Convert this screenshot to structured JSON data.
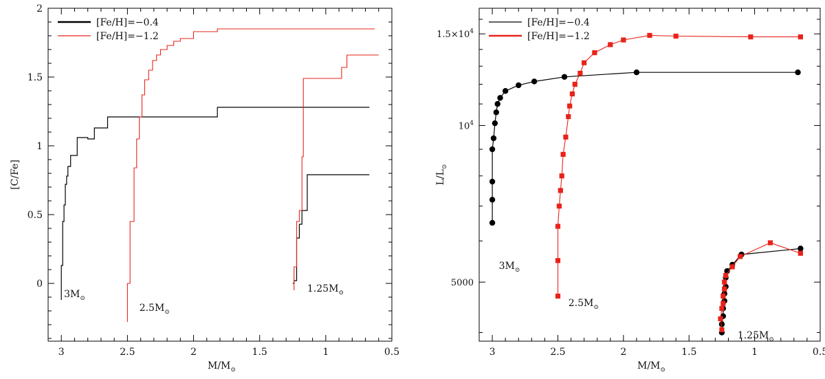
{
  "chart_data": [
    {
      "type": "line",
      "xlabel": "M/M",
      "xlabel_sub": "⊙",
      "ylabel": "[C/Fe]",
      "xlim": [
        3.1,
        0.5
      ],
      "ylim": [
        -0.42,
        2.0
      ],
      "x_ticks": [
        3,
        2.5,
        2,
        1.5,
        1,
        0.5
      ],
      "x_tick_labels": [
        "3",
        "2.5",
        "2",
        "1.5",
        "1",
        "0.5"
      ],
      "y_ticks": [
        0,
        0.5,
        1,
        1.5,
        2
      ],
      "y_tick_labels": [
        "0",
        "0.5",
        "1",
        "1.5",
        "2"
      ],
      "grid": false,
      "legend_position": "top-left",
      "legend": [
        {
          "label": "[Fe/H]=−0.4",
          "color": "#000000"
        },
        {
          "label": "[Fe/H]=−1.2",
          "color": "#e8231a"
        }
      ],
      "annotations": [
        {
          "text": "3M",
          "sub": "⊙",
          "x": 2.98,
          "y": -0.1
        },
        {
          "text": "2.5M",
          "sub": "⊙",
          "x": 2.41,
          "y": -0.2
        },
        {
          "text": "1.25M",
          "sub": "⊙",
          "x": 1.14,
          "y": -0.06
        }
      ],
      "series": [
        {
          "name": "[Fe/H]=−0.4",
          "color": "#000000",
          "mass": "3M",
          "x": [
            3.0,
            3.0,
            2.99,
            2.99,
            2.98,
            2.98,
            2.97,
            2.97,
            2.96,
            2.96,
            2.95,
            2.95,
            2.93,
            2.93,
            2.88,
            2.88,
            2.8,
            2.8,
            2.75,
            2.75,
            2.65,
            2.65,
            2.45,
            2.45,
            1.82,
            1.82,
            0.67
          ],
          "y": [
            -0.12,
            0.13,
            0.13,
            0.45,
            0.45,
            0.57,
            0.57,
            0.72,
            0.72,
            0.78,
            0.78,
            0.85,
            0.85,
            0.93,
            0.93,
            1.06,
            1.06,
            1.05,
            1.05,
            1.13,
            1.13,
            1.21,
            1.21,
            1.21,
            1.21,
            1.28,
            1.28
          ]
        },
        {
          "name": "[Fe/H]=−1.2",
          "color": "#e8231a",
          "mass": "2.5M",
          "x": [
            2.5,
            2.5,
            2.48,
            2.48,
            2.45,
            2.45,
            2.43,
            2.43,
            2.41,
            2.41,
            2.39,
            2.39,
            2.37,
            2.37,
            2.34,
            2.34,
            2.31,
            2.31,
            2.28,
            2.28,
            2.25,
            2.25,
            2.2,
            2.2,
            2.15,
            2.15,
            2.1,
            2.1,
            2.05,
            2.05,
            2.0,
            2.0,
            1.82,
            1.82,
            1.52,
            1.52,
            0.63
          ],
          "y": [
            -0.28,
            0.0,
            0.0,
            0.45,
            0.45,
            0.84,
            0.84,
            1.05,
            1.05,
            1.21,
            1.21,
            1.37,
            1.37,
            1.48,
            1.48,
            1.55,
            1.55,
            1.62,
            1.62,
            1.66,
            1.66,
            1.7,
            1.7,
            1.73,
            1.73,
            1.76,
            1.76,
            1.78,
            1.78,
            1.78,
            1.78,
            1.83,
            1.83,
            1.85,
            1.85,
            1.85,
            1.85
          ]
        },
        {
          "name": "[Fe/H]=−0.4",
          "color": "#000000",
          "mass": "1.25M",
          "x": [
            1.25,
            1.25,
            1.24,
            1.24,
            1.22,
            1.22,
            1.2,
            1.2,
            1.18,
            1.18,
            1.14,
            1.14,
            0.67
          ],
          "y": [
            0.0,
            0.0,
            0.0,
            0.02,
            0.02,
            0.33,
            0.33,
            0.43,
            0.43,
            0.53,
            0.53,
            0.79,
            0.79
          ]
        },
        {
          "name": "[Fe/H]=−1.2",
          "color": "#e8231a",
          "mass": "1.25M",
          "x": [
            1.24,
            1.24,
            1.22,
            1.22,
            1.2,
            1.2,
            1.18,
            1.18,
            1.17,
            1.17,
            0.88,
            0.88,
            0.84,
            0.84,
            0.6
          ],
          "y": [
            -0.05,
            0.12,
            0.12,
            0.45,
            0.45,
            0.53,
            0.53,
            0.92,
            0.92,
            1.49,
            1.49,
            1.57,
            1.57,
            1.66,
            1.66
          ]
        }
      ]
    },
    {
      "type": "line",
      "xlabel": "M/M",
      "xlabel_sub": "⊙",
      "ylabel": "L/L",
      "ylabel_sub": "⊙",
      "xlim": [
        3.1,
        0.5
      ],
      "ylim": [
        3850,
        16800
      ],
      "y_scale": "log",
      "x_ticks": [
        3,
        2.5,
        2,
        1.5,
        1,
        0.5
      ],
      "x_tick_labels": [
        "3",
        "2.5",
        "2",
        "1.5",
        "1",
        "0.5"
      ],
      "y_tick_labels": [
        {
          "value": 15000,
          "label": "1.5×10",
          "sup": "4"
        },
        {
          "value": 10000,
          "label": "10",
          "sup": "4"
        },
        {
          "value": 5000,
          "label": "5000",
          "sup": ""
        }
      ],
      "grid": false,
      "legend_position": "top-left",
      "legend": [
        {
          "label": "[Fe/H]=−0.4",
          "color": "#000000"
        },
        {
          "label": "[Fe/H]=−1.2",
          "color": "#e8231a"
        }
      ],
      "annotations": [
        {
          "text": "3M",
          "sub": "⊙",
          "x": 2.95,
          "y": 5300
        },
        {
          "text": "2.5M",
          "sub": "⊙",
          "x": 2.42,
          "y": 4500
        },
        {
          "text": "1.25M",
          "sub": "⊙",
          "x": 1.13,
          "y": 3900
        }
      ],
      "series": [
        {
          "name": "[Fe/H]=−0.4",
          "color": "#000000",
          "marker": "circle",
          "mass": "3M",
          "x": [
            3.0,
            3.0,
            3.0,
            3.0,
            2.99,
            2.98,
            2.97,
            2.96,
            2.94,
            2.9,
            2.8,
            2.68,
            2.45,
            1.9,
            0.67
          ],
          "y": [
            6500,
            7200,
            7800,
            9000,
            9450,
            10100,
            10600,
            11000,
            11300,
            11650,
            11950,
            12150,
            12400,
            12650,
            12650
          ]
        },
        {
          "name": "[Fe/H]=−1.2",
          "color": "#e8231a",
          "marker": "square",
          "mass": "2.5M",
          "x": [
            2.5,
            2.5,
            2.5,
            2.49,
            2.48,
            2.47,
            2.46,
            2.44,
            2.42,
            2.41,
            2.39,
            2.37,
            2.33,
            2.3,
            2.22,
            2.1,
            2.0,
            1.8,
            1.6,
            1.03,
            0.65
          ],
          "y": [
            4700,
            5500,
            6400,
            7000,
            7500,
            8000,
            8800,
            9500,
            10400,
            10900,
            11500,
            12000,
            12600,
            13200,
            13800,
            14300,
            14600,
            14900,
            14850,
            14800,
            14800
          ]
        },
        {
          "name": "[Fe/H]=−0.4",
          "color": "#000000",
          "marker": "circle",
          "mass": "1.25M",
          "x": [
            1.25,
            1.25,
            1.24,
            1.24,
            1.23,
            1.23,
            1.22,
            1.22,
            1.21,
            1.17,
            1.1,
            0.65
          ],
          "y": [
            4000,
            4150,
            4300,
            4450,
            4600,
            4750,
            4900,
            5100,
            5250,
            5400,
            5650,
            5800
          ]
        },
        {
          "name": "[Fe/H]=−1.2",
          "color": "#e8231a",
          "marker": "square",
          "mass": "1.25M",
          "x": [
            1.25,
            1.26,
            1.25,
            1.24,
            1.24,
            1.23,
            1.23,
            1.22,
            1.17,
            1.11,
            0.88,
            0.65
          ],
          "y": [
            4050,
            4250,
            4450,
            4550,
            4700,
            4850,
            5000,
            5150,
            5350,
            5600,
            5950,
            5680
          ]
        }
      ]
    }
  ]
}
